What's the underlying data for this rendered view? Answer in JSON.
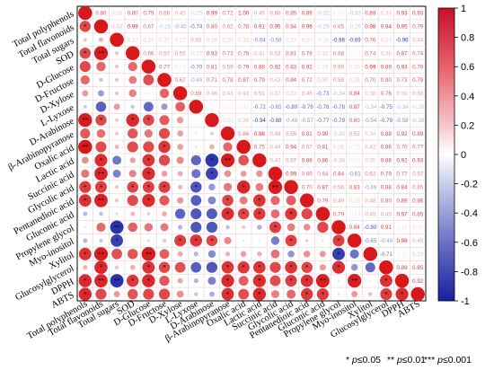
{
  "chart_data": {
    "type": "heatmap",
    "variables": [
      "Total polyphenols",
      "Total flavonoids",
      "Total sugars",
      "SOD",
      "D-Glucose",
      "D-Fructose",
      "D-Xylose",
      "L-Lyxose",
      "D-Arabinose",
      "β-Arabinopyranose",
      "Oxalic acid",
      "Lactic acid",
      "Succinic acid",
      "Glycolic acid",
      "Pentanedioic acid",
      "Gluconic acid",
      "Propylene glycol",
      "Myo-inositol",
      "Xylitol",
      "Glucosylglycerol",
      "DPPH",
      "ABTS"
    ],
    "upper_numbers": [
      [
        null,
        "0.80",
        "0.26",
        "0.80",
        "0.79",
        "0.66",
        "0.45",
        "-0.25",
        "0.99",
        "0.72",
        "1.00",
        "0.49",
        "0.60",
        "0.85",
        "0.89",
        "-0.32",
        "0.14",
        "-0.33",
        "0.89",
        "0.33",
        "0.93",
        "0.93"
      ],
      [
        null,
        null,
        "0.33",
        "0.99",
        "0.67",
        "-0.28",
        "-0.45",
        "-0.74",
        "0.80",
        "0.62",
        "0.78",
        "0.91",
        "0.95",
        "0.84",
        "0.96",
        "-0.29",
        "0.65",
        "-0.26",
        "0.98",
        "0.94",
        "0.95",
        "0.79"
      ],
      [
        null,
        null,
        null,
        "0.27",
        "0.27",
        "0.27",
        "0.27",
        "0.45",
        "0.26",
        "0.26",
        "0.32",
        "-0.64",
        "-0.58",
        "0.27",
        "0.27",
        "-0.18",
        "-0.96",
        "-0.89",
        "0.76",
        "0.27",
        "-0.96",
        "0.44"
      ],
      [
        null,
        null,
        null,
        null,
        "0.66",
        "0.57",
        "0.55",
        "-0.27",
        "0.93",
        "0.73",
        "0.78",
        "0.41",
        "0.53",
        "0.81",
        "0.78",
        "0.32",
        "0.68",
        "0.07",
        "0.74",
        "0.36",
        "0.87",
        "0.74"
      ],
      [
        null,
        null,
        null,
        null,
        null,
        "0.77",
        "0.14",
        "-0.70",
        "0.81",
        "0.59",
        "0.79",
        "0.88",
        "0.92",
        "0.83",
        "0.92",
        "0.24",
        "0.60",
        "0.20",
        "0.99",
        "0.89",
        "0.93",
        "0.79"
      ],
      [
        null,
        null,
        null,
        null,
        null,
        null,
        "0.67",
        "-0.46",
        "0.71",
        "0.78",
        "0.87",
        "0.79",
        "0.43",
        "0.84",
        "0.72",
        "0.37",
        "0.58",
        "0.26",
        "0.70",
        "0.80",
        "0.73",
        "0.79"
      ],
      [
        null,
        null,
        null,
        null,
        null,
        null,
        null,
        "0.69",
        "0.46",
        "0.43",
        "0.43",
        "0.51",
        "0.37",
        "0.33",
        "0.46",
        "-0.73",
        "-0.34",
        "0.84",
        "0.38",
        "0.76",
        "0.39",
        "0.50"
      ],
      [
        null,
        null,
        null,
        null,
        null,
        null,
        null,
        null,
        "0.07",
        "0.12",
        "0.17",
        "-0.72",
        "-0.65",
        "-0.80",
        "-0.76",
        "-0.78",
        "-0.78",
        "0.87",
        "-0.34",
        "-0.75",
        "-0.34",
        "-0.28"
      ],
      [
        null,
        null,
        null,
        null,
        null,
        null,
        null,
        null,
        null,
        "0.25",
        "0.36",
        "-0.94",
        "-0.88",
        "-0.48",
        "-0.57",
        "-0.77",
        "-0.79",
        "0.80",
        "-0.54",
        "-0.79",
        "-0.58",
        "-0.38"
      ],
      [
        null,
        null,
        null,
        null,
        null,
        null,
        null,
        null,
        null,
        null,
        "0.66",
        "0.98",
        "0.48",
        "0.59",
        "0.81",
        "0.90",
        "-0.30",
        "0.52",
        "0.34",
        "0.88",
        "0.92",
        "0.89"
      ],
      [
        null,
        null,
        null,
        null,
        null,
        null,
        null,
        null,
        null,
        null,
        null,
        "0.75",
        "0.44",
        "0.94",
        "0.57",
        "0.81",
        "0.26",
        "0.15",
        "0.42",
        "0.86",
        "0.70",
        "0.77"
      ],
      [
        null,
        null,
        null,
        null,
        null,
        null,
        null,
        null,
        null,
        null,
        null,
        null,
        "0.47",
        "0.57",
        "0.88",
        "0.86",
        "-0.36",
        "0.11",
        "0.35",
        "0.88",
        "0.92",
        "0.93"
      ],
      [
        null,
        null,
        null,
        null,
        null,
        null,
        null,
        null,
        null,
        null,
        null,
        null,
        null,
        "0.99",
        "0.66",
        "0.64",
        "0.84",
        "-0.61",
        "0.62",
        "0.79",
        "0.77",
        "0.57"
      ],
      [
        null,
        null,
        null,
        null,
        null,
        null,
        null,
        null,
        null,
        null,
        null,
        null,
        null,
        null,
        "0.70",
        "0.87",
        "0.56",
        "0.83",
        "-0.49",
        "0.88",
        "0.84",
        "0.65"
      ],
      [
        null,
        null,
        null,
        null,
        null,
        null,
        null,
        null,
        null,
        null,
        null,
        null,
        null,
        null,
        null,
        "0.79",
        "0.49",
        "0.23",
        "0.48",
        "0.80",
        "0.89",
        "0.86"
      ],
      [
        null,
        null,
        null,
        null,
        null,
        null,
        null,
        null,
        null,
        null,
        null,
        null,
        null,
        null,
        null,
        null,
        "0.79",
        "-0.14",
        "0.45",
        "0.45",
        "0.97",
        "0.85"
      ],
      [
        null,
        null,
        null,
        null,
        null,
        null,
        null,
        null,
        null,
        null,
        null,
        null,
        null,
        null,
        null,
        null,
        null,
        "0.84",
        "-0.90",
        "0.91",
        "0.16",
        "0.16"
      ],
      [
        null,
        null,
        null,
        null,
        null,
        null,
        null,
        null,
        null,
        null,
        null,
        null,
        null,
        null,
        null,
        null,
        null,
        null,
        "-0.65",
        "-0.49",
        "0.98",
        "0.45"
      ],
      [
        null,
        null,
        null,
        null,
        null,
        null,
        null,
        null,
        null,
        null,
        null,
        null,
        null,
        null,
        null,
        null,
        null,
        null,
        null,
        "-0.71",
        "0.13",
        "0.29"
      ],
      [
        null,
        null,
        null,
        null,
        null,
        null,
        null,
        null,
        null,
        null,
        null,
        null,
        null,
        null,
        null,
        null,
        null,
        null,
        null,
        null,
        "0.89",
        "0.85"
      ],
      [
        null,
        null,
        null,
        null,
        null,
        null,
        null,
        null,
        null,
        null,
        null,
        null,
        null,
        null,
        null,
        null,
        null,
        null,
        null,
        null,
        null,
        "0.92"
      ],
      [
        null,
        null,
        null,
        null,
        null,
        null,
        null,
        null,
        null,
        null,
        null,
        null,
        null,
        null,
        null,
        null,
        null,
        null,
        null,
        null,
        null,
        null
      ]
    ],
    "colorbar": {
      "min": -1,
      "max": 1,
      "ticks": [
        "1",
        "0.8",
        "0.6",
        "0.4",
        "0.2",
        "0",
        "-0.2",
        "-0.4",
        "-0.6",
        "-0.8",
        "-1"
      ]
    },
    "colors": {
      "positive": "#d7191c",
      "negative": "#1f2aa8",
      "neutral": "#ffffff"
    },
    "significance_legend": [
      {
        "stars": "*",
        "label": "p≤0.05"
      },
      {
        "stars": "**",
        "label": "p≤0.01"
      },
      {
        "stars": "***",
        "label": "p≤0.001"
      }
    ]
  }
}
